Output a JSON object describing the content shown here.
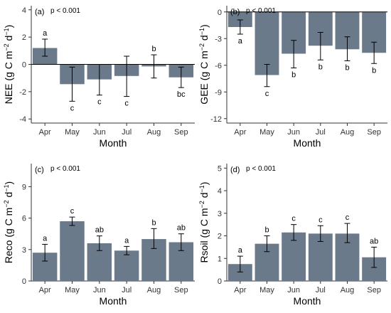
{
  "colors": {
    "bar": "#6b7a8b",
    "axis": "#333333",
    "error": "#000000",
    "zero_line": "#000000"
  },
  "chart_data": [
    {
      "type": "bar",
      "panel": "(a)",
      "annotation": "p < 0.001",
      "ylabel": "NEE",
      "ylabel_unit": [
        "(g C m",
        "−2",
        " d",
        "−1",
        ")"
      ],
      "xlabel": "Month",
      "categories": [
        "Apr",
        "May",
        "Jun",
        "Jul",
        "Aug",
        "Sep"
      ],
      "values": [
        1.2,
        -1.45,
        -1.1,
        -0.85,
        -0.15,
        -0.95
      ],
      "err_low": [
        0.6,
        -2.7,
        -2.25,
        -2.35,
        -1.0,
        -1.7
      ],
      "err_high": [
        1.85,
        -0.2,
        0.0,
        0.6,
        0.7,
        -0.2
      ],
      "letters": [
        "a",
        "c",
        "c",
        "c",
        "b",
        "bc"
      ],
      "letter_pos": [
        "above",
        "below",
        "below",
        "below",
        "above",
        "below"
      ],
      "yticks": [
        "4",
        "2",
        "0",
        "-2",
        "-4"
      ],
      "ytick_values": [
        4,
        2,
        0,
        -2,
        -4
      ],
      "ylim": [
        -4.3,
        4.3
      ],
      "zero_line": true
    },
    {
      "type": "bar",
      "panel": "(b)",
      "annotation": "p < 0.001",
      "ylabel": "GEE",
      "ylabel_unit": [
        "(g C m",
        "−2",
        " d",
        "−1",
        ")"
      ],
      "xlabel": "Month",
      "categories": [
        "Apr",
        "May",
        "Jun",
        "Jul",
        "Aug",
        "Sep"
      ],
      "values": [
        -1.7,
        -7.1,
        -4.7,
        -3.8,
        -4.2,
        -4.6
      ],
      "err_low": [
        -2.5,
        -8.4,
        -6.3,
        -5.4,
        -5.5,
        -5.8
      ],
      "err_high": [
        -0.9,
        -5.9,
        -3.2,
        -2.3,
        -2.8,
        -3.4
      ],
      "letters": [
        "a",
        "c",
        "b",
        "b",
        "b",
        "b"
      ],
      "letter_pos": [
        "below",
        "below",
        "below",
        "below",
        "below",
        "below"
      ],
      "yticks": [
        "0",
        "-3",
        "-6",
        "-9",
        "-12"
      ],
      "ytick_values": [
        0,
        -3,
        -6,
        -9,
        -12
      ],
      "ylim": [
        -12.5,
        0.7
      ],
      "zero_line": true
    },
    {
      "type": "bar",
      "panel": "(c)",
      "annotation": "p < 0.001",
      "ylabel": "Reco",
      "ylabel_unit": [
        "(g C m",
        "−2",
        " d",
        "−1",
        ")"
      ],
      "xlabel": "Month",
      "categories": [
        "Apr",
        "May",
        "Jun",
        "Jul",
        "Aug",
        "Sep"
      ],
      "values": [
        2.7,
        5.7,
        3.6,
        2.9,
        4.0,
        3.7
      ],
      "err_low": [
        1.9,
        5.3,
        2.9,
        2.5,
        3.1,
        2.9
      ],
      "err_high": [
        3.5,
        6.1,
        4.3,
        3.3,
        5.0,
        4.5
      ],
      "letters": [
        "a",
        "c",
        "ab",
        "a",
        "b",
        "ab"
      ],
      "letter_pos": [
        "above",
        "above",
        "above",
        "above",
        "above",
        "above"
      ],
      "yticks": [
        "0",
        "3",
        "6",
        "9"
      ],
      "ytick_values": [
        0,
        3,
        6,
        9
      ],
      "ylim": [
        0,
        11.2
      ],
      "zero_line": false
    },
    {
      "type": "bar",
      "panel": "(d)",
      "annotation": "p < 0.001",
      "ylabel": "Rsoil",
      "ylabel_unit": [
        "(g C m",
        "−2",
        " d",
        "−1",
        ")"
      ],
      "xlabel": "Month",
      "categories": [
        "Apr",
        "May",
        "Jun",
        "Jul",
        "Aug",
        "Sep"
      ],
      "values": [
        0.75,
        1.65,
        2.15,
        2.1,
        2.1,
        1.05
      ],
      "err_low": [
        0.4,
        1.3,
        1.8,
        1.75,
        1.7,
        0.6
      ],
      "err_high": [
        1.1,
        2.0,
        2.5,
        2.45,
        2.55,
        1.5
      ],
      "letters": [
        "a",
        "b",
        "c",
        "c",
        "c",
        "ab"
      ],
      "letter_pos": [
        "above",
        "above",
        "above",
        "above",
        "above",
        "above"
      ],
      "yticks": [
        "0",
        "1",
        "2",
        "3",
        "4",
        "5"
      ],
      "ytick_values": [
        0,
        1,
        2,
        3,
        4,
        5
      ],
      "ylim": [
        0,
        5.2
      ],
      "zero_line": false
    }
  ]
}
